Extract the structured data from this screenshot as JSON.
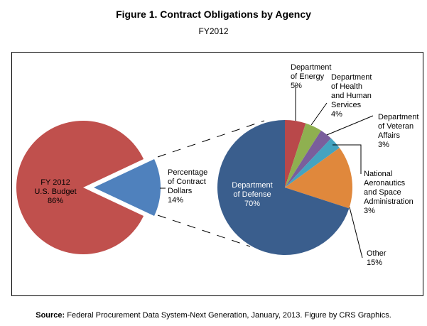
{
  "chart_data": [
    {
      "type": "pie",
      "title": "Figure 1. Contract Obligations by Agency",
      "subtitle": "FY2012",
      "slices": [
        {
          "label": [
            "FY 2012",
            "U.S. Budget"
          ],
          "value": 86,
          "value_label": "86%",
          "color": "#C0504D"
        },
        {
          "label": [
            "Percentage",
            "of Contract",
            "Dollars"
          ],
          "value": 14,
          "value_label": "14%",
          "color": "#4F81BD",
          "exploded": true
        }
      ]
    },
    {
      "type": "pie",
      "slices": [
        {
          "label": [
            "Department",
            "of Energy"
          ],
          "value": 5,
          "value_label": "5%",
          "color": "#B9484A"
        },
        {
          "label": [
            "Department",
            "of Health",
            "and Human",
            "Services"
          ],
          "value": 4,
          "value_label": "4%",
          "color": "#8FB050"
        },
        {
          "label": [
            "Department",
            "of Veteran",
            "Affairs"
          ],
          "value": 3,
          "value_label": "3%",
          "color": "#7A5E9C"
        },
        {
          "label": [
            "National",
            "Aeronautics",
            "and Space",
            "Administration"
          ],
          "value": 3,
          "value_label": "3%",
          "color": "#44A3C0"
        },
        {
          "label": [
            "Other"
          ],
          "value": 15,
          "value_label": "15%",
          "color": "#E0883C"
        },
        {
          "label": [
            "Department",
            "of Defense"
          ],
          "value": 70,
          "value_label": "70%",
          "color": "#3A5E8D"
        }
      ]
    }
  ],
  "source": {
    "label": "Source:",
    "text": "Federal Procurement Data System-Next Generation, January, 2013. Figure by CRS Graphics."
  }
}
